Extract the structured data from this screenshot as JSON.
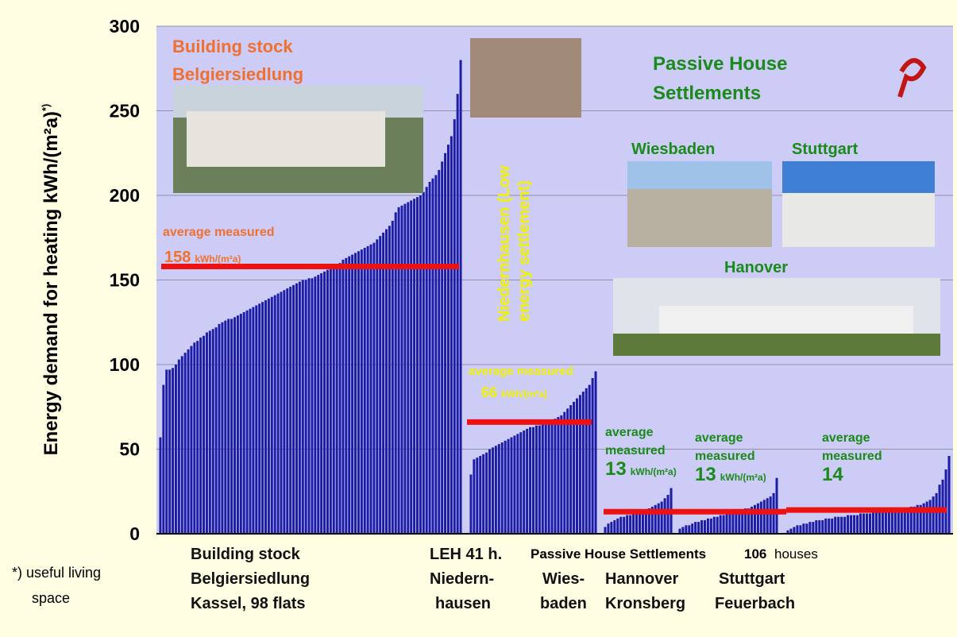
{
  "chart_data": {
    "type": "bar",
    "y_label": "Energy demand for heating  kWh/(m²a)",
    "y_label_note": "*)",
    "ylim": [
      0,
      300
    ],
    "yticks": [
      0,
      50,
      100,
      150,
      200,
      250,
      300
    ],
    "grid": true,
    "bar_color": "#1c1ca6",
    "average_color": "#ee1111",
    "series": [
      {
        "values": [
          57,
          88,
          97,
          97,
          98,
          100,
          103,
          105,
          107,
          109,
          111,
          113,
          114,
          116,
          117,
          119,
          120,
          121,
          122,
          124,
          125,
          126,
          127,
          127,
          128,
          129,
          130,
          131,
          132,
          133,
          134,
          135,
          136,
          137,
          138,
          139,
          140,
          141,
          142,
          143,
          144,
          145,
          146,
          147,
          148,
          149,
          150,
          150,
          151,
          151,
          152,
          153,
          154,
          155,
          156,
          157,
          158,
          159,
          160,
          162,
          163,
          164,
          165,
          166,
          167,
          168,
          169,
          170,
          171,
          172,
          174,
          176,
          178,
          180,
          182,
          185,
          190,
          193,
          194,
          195,
          196,
          197,
          198,
          199,
          200,
          202,
          205,
          208,
          210,
          212,
          215,
          220,
          225,
          230,
          235,
          245,
          260,
          280
        ],
        "average": 158,
        "average_lines": [
          "average measured"
        ],
        "average_unit": "kWh/(m²a)"
      },
      {
        "values": [
          35,
          44,
          45,
          46,
          47,
          48,
          50,
          51,
          52,
          53,
          54,
          55,
          56,
          57,
          58,
          59,
          60,
          61,
          62,
          63,
          63,
          64,
          64,
          65,
          65,
          66,
          67,
          68,
          69,
          70,
          72,
          74,
          76,
          78,
          80,
          82,
          84,
          86,
          88,
          92,
          96
        ],
        "average": 66,
        "average_lines": [
          "average measured"
        ],
        "average_unit": "kWh/(m²a)"
      },
      {
        "values": [
          4,
          6,
          7,
          8,
          9,
          10,
          10,
          11,
          11,
          12,
          12,
          13,
          13,
          14,
          15,
          16,
          17,
          18,
          19,
          21,
          23,
          27
        ],
        "average": 13,
        "average_lines": [
          "average",
          "measured"
        ],
        "average_unit": "kWh/(m²a)"
      },
      {
        "values": [
          3,
          4,
          5,
          5,
          6,
          7,
          7,
          8,
          8,
          9,
          9,
          10,
          10,
          11,
          11,
          12,
          12,
          13,
          13,
          14,
          14,
          15,
          15,
          16,
          17,
          18,
          19,
          20,
          21,
          22,
          24,
          33
        ],
        "average": 13,
        "average_lines": [
          "average",
          "measured"
        ],
        "average_unit": "kWh/(m²a)"
      },
      {
        "values": [
          2,
          3,
          4,
          5,
          5,
          6,
          6,
          7,
          7,
          8,
          8,
          8,
          9,
          9,
          9,
          10,
          10,
          10,
          10,
          11,
          11,
          11,
          11,
          12,
          12,
          12,
          12,
          13,
          13,
          13,
          13,
          13,
          14,
          14,
          14,
          14,
          15,
          15,
          15,
          16,
          16,
          17,
          17,
          18,
          19,
          20,
          22,
          24,
          29,
          32,
          38,
          46
        ],
        "average": 14,
        "average_lines": [
          "average",
          "measured"
        ]
      }
    ],
    "annotations": {
      "stock_title": [
        "Building stock",
        "Belgiersiedlung"
      ],
      "passive_title": [
        "Passive House",
        "Settlements"
      ],
      "photo_labels": [
        "Wiesbaden",
        "Stuttgart",
        "Hanover"
      ],
      "low_energy": [
        "Niedernhausen (Low",
        "energy settlement)"
      ]
    },
    "x_labels": {
      "stock": [
        "Building stock",
        "Belgiersiedlung",
        "Kassel, 98 flats"
      ],
      "leh": [
        "LEH 41 h.",
        "Niedern-",
        "hausen"
      ],
      "passive_header": "Passive House Settlements",
      "passive_count": "106",
      "passive_unit": "houses",
      "wiesbaden": [
        "Wies-",
        "baden"
      ],
      "hannover": [
        "Hannover",
        "Kronsberg"
      ],
      "stuttgart": [
        "Stuttgart",
        "Feuerbach"
      ]
    },
    "footnote": [
      "*) useful living",
      "space"
    ]
  }
}
